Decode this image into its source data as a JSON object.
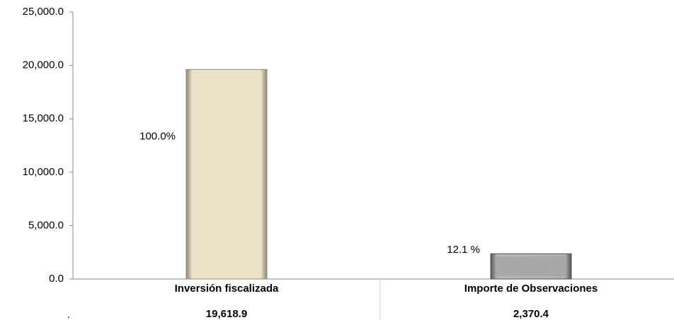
{
  "chart_data": {
    "type": "bar",
    "categories": [
      "Inversión fiscalizada",
      "Importe de Observaciones"
    ],
    "values": [
      19618.9,
      2370.4
    ],
    "value_labels": [
      "19,618.9",
      "2,370.4"
    ],
    "colors": [
      "#ebe3c8",
      "#a6a6a6"
    ],
    "annotations": [
      "100.0%",
      "12.1 %"
    ],
    "row_label": ".",
    "ylim": [
      0,
      25000
    ],
    "yticks": [
      {
        "value": 0,
        "label": "0.0"
      },
      {
        "value": 5000,
        "label": "5,000.0"
      },
      {
        "value": 10000,
        "label": "10,000.0"
      },
      {
        "value": 15000,
        "label": "15,000.0"
      },
      {
        "value": 20000,
        "label": "20,000.0"
      },
      {
        "value": 25000,
        "label": "25,000.0"
      }
    ]
  }
}
